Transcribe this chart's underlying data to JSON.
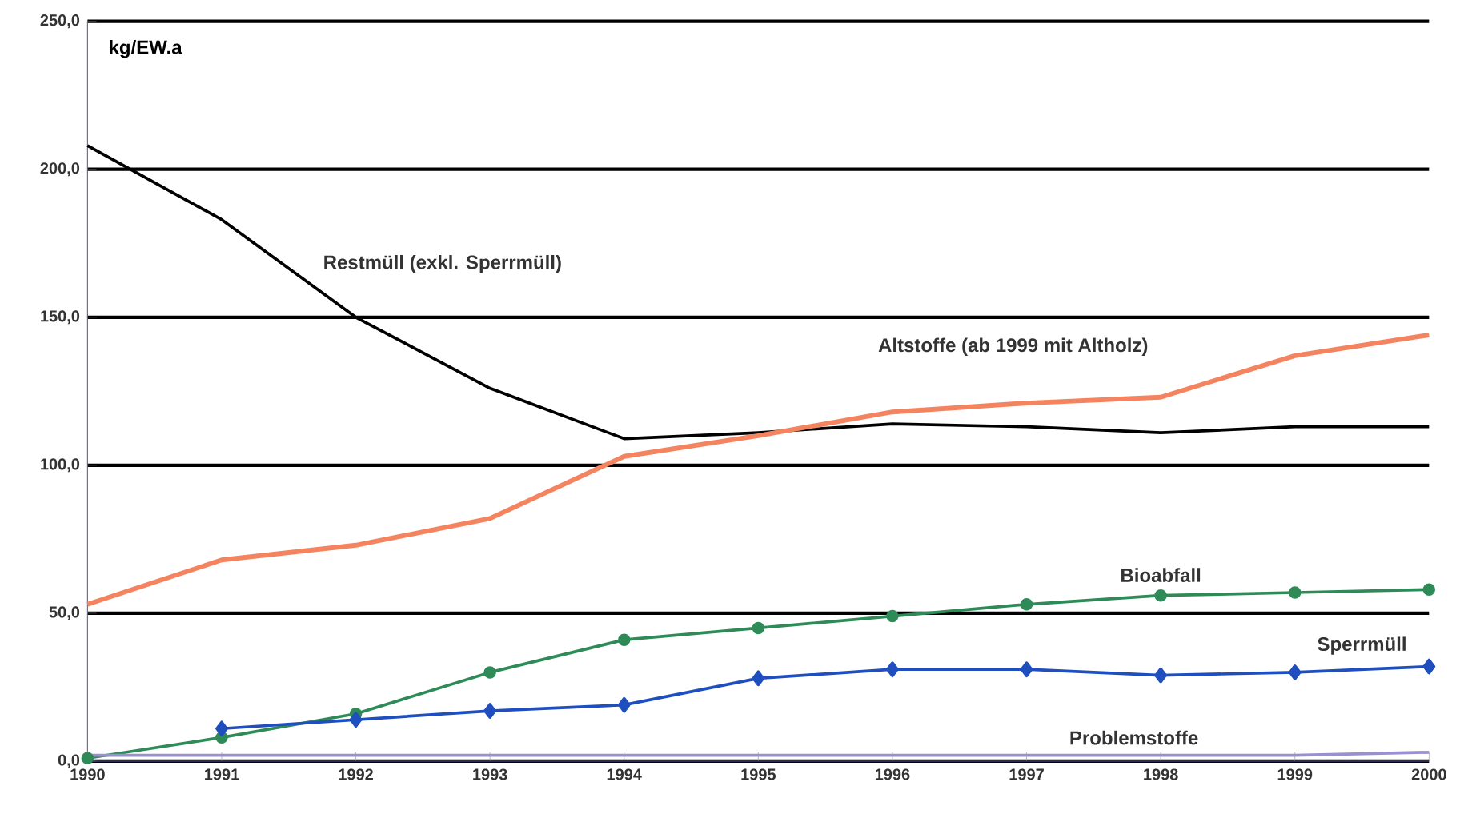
{
  "chart_data": {
    "type": "line",
    "ylabel": "kg/EW.a",
    "categories": [
      "1990",
      "1991",
      "1992",
      "1993",
      "1994",
      "1995",
      "1996",
      "1997",
      "1998",
      "1999",
      "2000"
    ],
    "series": [
      {
        "name": "Restmüll (exkl. Sperrmüll)",
        "color": "#000000",
        "marker": "none",
        "values": [
          208,
          183,
          150,
          126,
          109,
          111,
          114,
          113,
          111,
          113,
          113
        ]
      },
      {
        "name": "Altstoffe (ab 1999 mit Altholz)",
        "color": "#f4845f",
        "marker": "none",
        "values": [
          53,
          68,
          73,
          82,
          103,
          110,
          118,
          121,
          123,
          137,
          144
        ]
      },
      {
        "name": "Bioabfall",
        "color": "#2e8b57",
        "marker": "circle",
        "values": [
          1,
          8,
          16,
          30,
          41,
          45,
          49,
          53,
          56,
          57,
          58
        ]
      },
      {
        "name": "Sperrmüll",
        "color": "#1f4fbf",
        "marker": "diamond",
        "values": [
          null,
          11,
          14,
          17,
          19,
          28,
          31,
          31,
          29,
          30,
          32
        ]
      },
      {
        "name": "Problemstoffe",
        "color": "#9a8fd0",
        "marker": "none",
        "values": [
          2,
          2,
          2,
          2,
          2,
          2,
          2,
          2,
          2,
          2,
          3
        ]
      }
    ],
    "ylim": [
      0,
      250
    ],
    "yticks": [
      {
        "value": 0,
        "label": "0,0"
      },
      {
        "value": 50,
        "label": "50,0"
      },
      {
        "value": 100,
        "label": "100,0"
      },
      {
        "value": 150,
        "label": "150,0"
      },
      {
        "value": 200,
        "label": "200,0"
      },
      {
        "value": 250,
        "label": "250,0"
      }
    ],
    "grid": "y",
    "legend": false
  }
}
